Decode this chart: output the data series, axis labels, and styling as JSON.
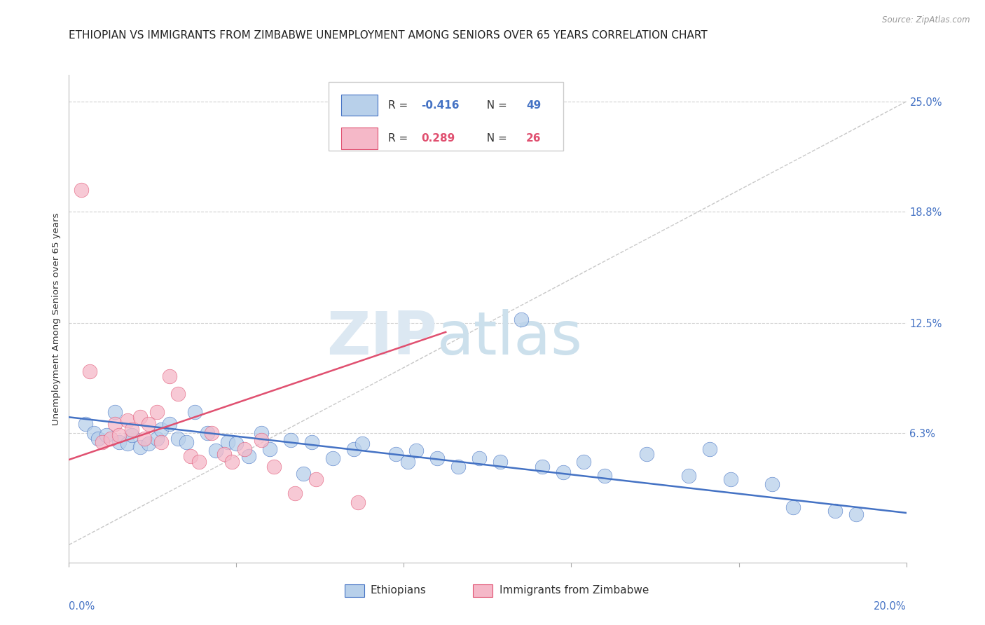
{
  "title": "ETHIOPIAN VS IMMIGRANTS FROM ZIMBABWE UNEMPLOYMENT AMONG SENIORS OVER 65 YEARS CORRELATION CHART",
  "source": "Source: ZipAtlas.com",
  "ylabel": "Unemployment Among Seniors over 65 years",
  "y_ticks": [
    0.0,
    0.063,
    0.125,
    0.188,
    0.25
  ],
  "y_tick_labels": [
    "",
    "6.3%",
    "12.5%",
    "18.8%",
    "25.0%"
  ],
  "x_range": [
    0.0,
    0.2
  ],
  "y_range": [
    -0.01,
    0.265
  ],
  "watermark_zip": "ZIP",
  "watermark_atlas": "atlas",
  "ethiopian_color": "#b8d0ea",
  "zimbabwe_color": "#f5b8c8",
  "blue_line_color": "#4472c4",
  "pink_line_color": "#e05070",
  "ethiopian_scatter": [
    [
      0.004,
      0.068
    ],
    [
      0.006,
      0.063
    ],
    [
      0.007,
      0.06
    ],
    [
      0.009,
      0.062
    ],
    [
      0.011,
      0.075
    ],
    [
      0.012,
      0.058
    ],
    [
      0.014,
      0.057
    ],
    [
      0.015,
      0.062
    ],
    [
      0.017,
      0.055
    ],
    [
      0.019,
      0.057
    ],
    [
      0.021,
      0.06
    ],
    [
      0.022,
      0.065
    ],
    [
      0.024,
      0.068
    ],
    [
      0.026,
      0.06
    ],
    [
      0.028,
      0.058
    ],
    [
      0.03,
      0.075
    ],
    [
      0.033,
      0.063
    ],
    [
      0.035,
      0.053
    ],
    [
      0.038,
      0.058
    ],
    [
      0.04,
      0.057
    ],
    [
      0.043,
      0.05
    ],
    [
      0.046,
      0.063
    ],
    [
      0.048,
      0.054
    ],
    [
      0.053,
      0.059
    ],
    [
      0.056,
      0.04
    ],
    [
      0.058,
      0.058
    ],
    [
      0.063,
      0.049
    ],
    [
      0.068,
      0.054
    ],
    [
      0.07,
      0.057
    ],
    [
      0.078,
      0.051
    ],
    [
      0.081,
      0.047
    ],
    [
      0.083,
      0.053
    ],
    [
      0.088,
      0.049
    ],
    [
      0.093,
      0.044
    ],
    [
      0.098,
      0.049
    ],
    [
      0.103,
      0.047
    ],
    [
      0.108,
      0.127
    ],
    [
      0.113,
      0.044
    ],
    [
      0.118,
      0.041
    ],
    [
      0.123,
      0.047
    ],
    [
      0.128,
      0.039
    ],
    [
      0.138,
      0.051
    ],
    [
      0.148,
      0.039
    ],
    [
      0.153,
      0.054
    ],
    [
      0.158,
      0.037
    ],
    [
      0.168,
      0.034
    ],
    [
      0.173,
      0.021
    ],
    [
      0.183,
      0.019
    ],
    [
      0.188,
      0.017
    ]
  ],
  "zimbabwe_scatter": [
    [
      0.003,
      0.2
    ],
    [
      0.005,
      0.098
    ],
    [
      0.008,
      0.058
    ],
    [
      0.01,
      0.06
    ],
    [
      0.011,
      0.068
    ],
    [
      0.012,
      0.062
    ],
    [
      0.014,
      0.07
    ],
    [
      0.015,
      0.065
    ],
    [
      0.017,
      0.072
    ],
    [
      0.018,
      0.06
    ],
    [
      0.019,
      0.068
    ],
    [
      0.021,
      0.075
    ],
    [
      0.022,
      0.058
    ],
    [
      0.024,
      0.095
    ],
    [
      0.026,
      0.085
    ],
    [
      0.029,
      0.05
    ],
    [
      0.031,
      0.047
    ],
    [
      0.034,
      0.063
    ],
    [
      0.037,
      0.051
    ],
    [
      0.039,
      0.047
    ],
    [
      0.042,
      0.054
    ],
    [
      0.046,
      0.059
    ],
    [
      0.049,
      0.044
    ],
    [
      0.054,
      0.029
    ],
    [
      0.059,
      0.037
    ],
    [
      0.069,
      0.024
    ]
  ],
  "blue_trend_x": [
    0.0,
    0.2
  ],
  "blue_trend_y": [
    0.072,
    0.018
  ],
  "pink_trend_x": [
    0.0,
    0.09
  ],
  "pink_trend_y": [
    0.048,
    0.12
  ],
  "diag_line_x": [
    0.0,
    0.2
  ],
  "diag_line_y": [
    0.0,
    0.25
  ],
  "background_color": "#ffffff",
  "grid_color": "#d0d0d0",
  "title_fontsize": 11,
  "axis_label_fontsize": 9.5,
  "tick_fontsize": 10.5,
  "legend_r1": "R = ",
  "legend_v1": "-0.416",
  "legend_n1_label": "  N = ",
  "legend_n1": "49",
  "legend_r2": "R =  ",
  "legend_v2": "0.289",
  "legend_n2_label": "  N = ",
  "legend_n2": "26",
  "bottom_label1": "Ethiopians",
  "bottom_label2": "Immigrants from Zimbabwe"
}
